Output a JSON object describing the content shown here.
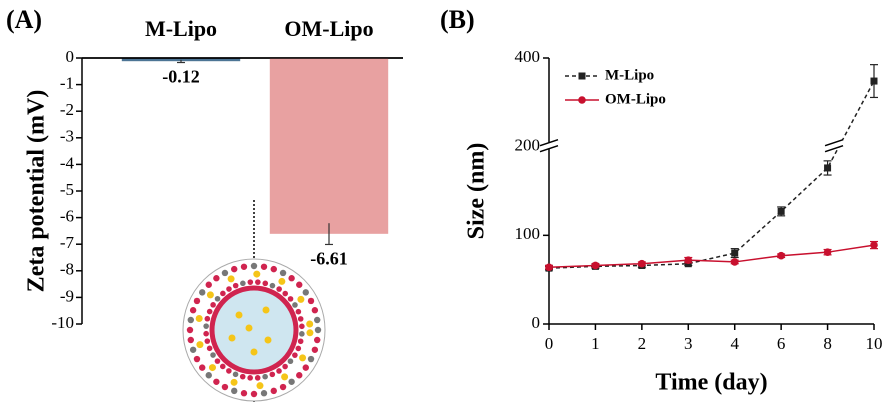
{
  "chart_data": [
    {
      "type": "bar",
      "panel": "(A)",
      "ylabel": "Zeta potential (mV)",
      "categories": [
        "M-Lipo",
        "OM-Lipo"
      ],
      "values": [
        -0.12,
        -6.61
      ],
      "errors": [
        0.05,
        0.4
      ],
      "colors": [
        "#4d7595",
        "#e8a1a1"
      ],
      "ylim": [
        -10,
        0
      ],
      "yticks": [
        0,
        -1,
        -2,
        -3,
        -4,
        -5,
        -6,
        -7,
        -8,
        -9,
        -10
      ]
    },
    {
      "type": "line",
      "panel": "(B)",
      "ylabel": "Size (nm)",
      "xlabel": "Time (day)",
      "categories": [
        "0",
        "1",
        "2",
        "3",
        "4",
        "6",
        "8",
        "10"
      ],
      "series": [
        {
          "name": "M-Lipo",
          "color": "#222222",
          "linestyle": "dashed",
          "marker": "square",
          "values": [
            63,
            65,
            66,
            68,
            80,
            127,
            176,
            348
          ],
          "errors": [
            2,
            2,
            2,
            2,
            5,
            5,
            8,
            37
          ]
        },
        {
          "name": "OM-Lipo",
          "color": "#c8102e",
          "linestyle": "solid",
          "marker": "circle",
          "values": [
            64,
            66,
            68,
            72,
            70,
            77,
            81,
            89
          ],
          "errors": [
            2,
            2,
            2,
            3,
            2,
            2,
            3,
            4
          ]
        }
      ],
      "ylim": [
        0,
        400
      ],
      "yticks": [
        0,
        100,
        200,
        400
      ],
      "y_break": 200,
      "legend": "upper left"
    }
  ]
}
